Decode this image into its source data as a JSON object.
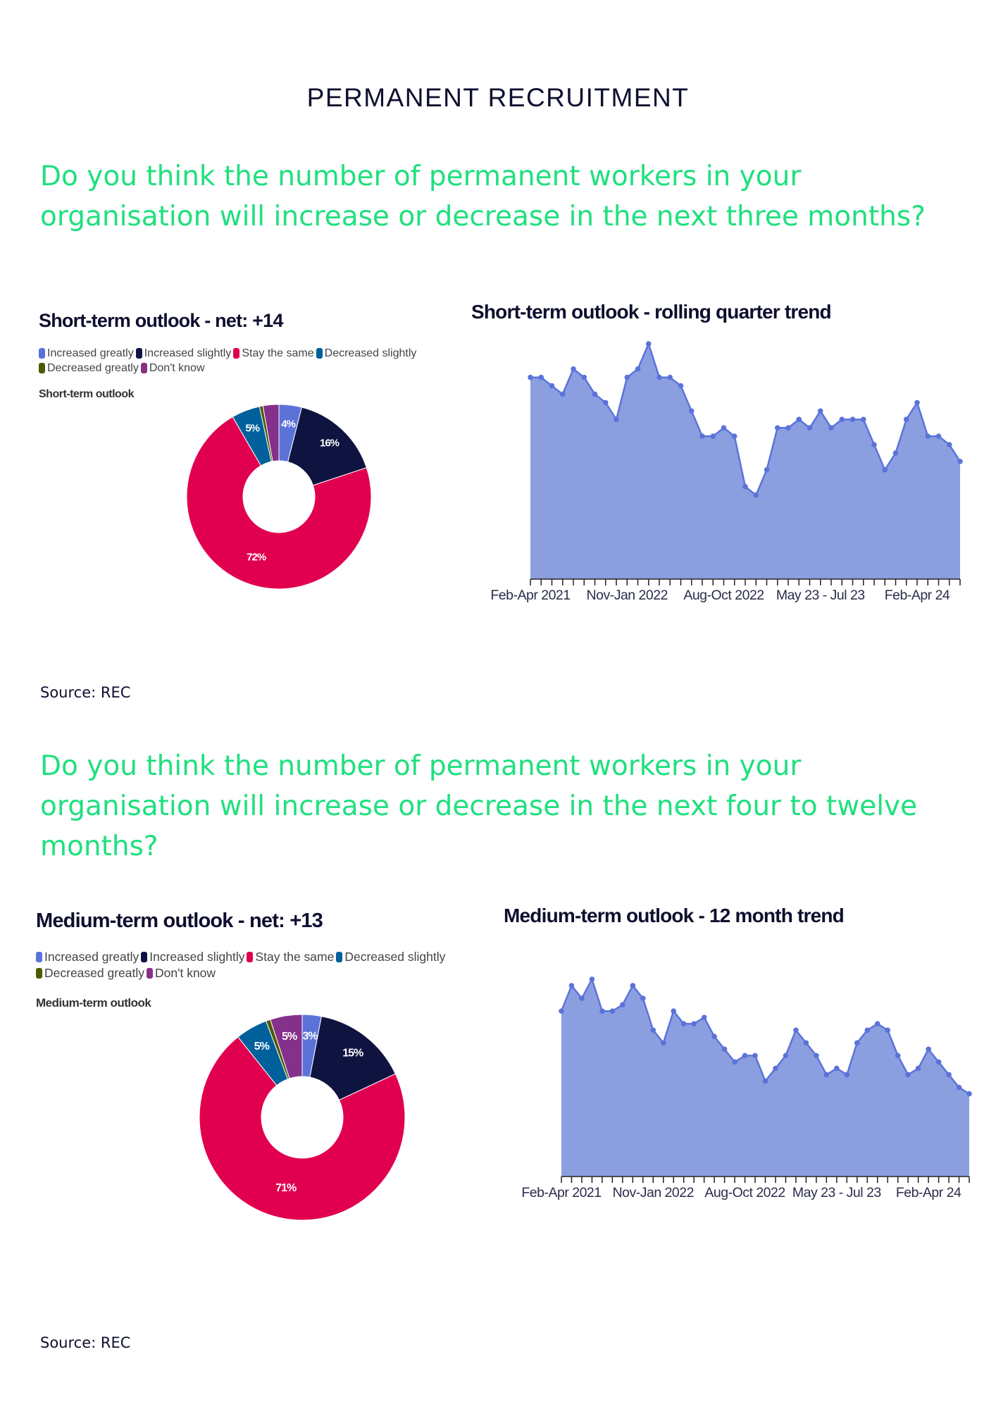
{
  "page_title": "PERMANENT RECRUITMENT",
  "sections": [
    {
      "question": "Do you think the number of permanent workers in your organisation will increase or decrease in the next three months?",
      "source": "Source: REC"
    },
    {
      "question": "Do you think the number of permanent workers in your organisation will increase or decrease in the next four to twelve months?",
      "source": "Source: REC"
    }
  ],
  "legend_items": [
    {
      "label": "Increased greatly",
      "color": "#5b73d9"
    },
    {
      "label": "Increased slightly",
      "color": "#0f1340"
    },
    {
      "label": "Stay the same",
      "color": "#e1004f"
    },
    {
      "label": "Decreased slightly",
      "color": "#00609c"
    },
    {
      "label": "Decreased greatly",
      "color": "#4f5a00"
    },
    {
      "label": "Don't know",
      "color": "#85308a"
    }
  ],
  "chart_data": [
    {
      "type": "pie",
      "donut": true,
      "title": "Short-term outlook - net: +14",
      "subtitle": "Short-term outlook",
      "legend_placement": "top-left",
      "categories": [
        "Increased greatly",
        "Increased slightly",
        "Stay the same",
        "Decreased slightly",
        "Decreased greatly",
        "Don't know"
      ],
      "values": [
        4,
        16,
        72,
        5,
        0.6,
        2.8
      ],
      "data_labels": [
        "4%",
        "16%",
        "72%",
        "5%",
        "",
        ""
      ],
      "colors": [
        "#5b73d9",
        "#0f1340",
        "#e1004f",
        "#00609c",
        "#4f5a00",
        "#85308a"
      ]
    },
    {
      "type": "area",
      "title": "Short-term outlook - rolling quarter trend",
      "xlabel": "",
      "ylabel": "",
      "x_tick_labels": [
        "Feb-Apr 2021",
        "Nov-Jan 2022",
        "Aug-Oct 2022",
        "May 23 - Jul 23",
        "Feb-Apr 24"
      ],
      "x_tick_label_every": 9,
      "values": [
        24,
        24,
        23,
        22,
        25,
        24,
        22,
        21,
        19,
        24,
        25,
        28,
        24,
        24,
        23,
        20,
        17,
        17,
        18,
        17,
        11,
        10,
        13,
        18,
        18,
        19,
        18,
        20,
        18,
        19,
        19,
        19,
        16,
        13,
        15,
        19,
        21,
        17,
        17,
        16,
        14
      ],
      "ylim": [
        0,
        28
      ],
      "grid": false,
      "fill_color": "#8b9fe0",
      "line_color": "#5b73d9"
    },
    {
      "type": "pie",
      "donut": true,
      "title": "Medium-term outlook - net: +13",
      "subtitle": "Medium-term outlook",
      "legend_placement": "top-left",
      "categories": [
        "Increased greatly",
        "Increased slightly",
        "Stay the same",
        "Decreased slightly",
        "Decreased greatly",
        "Don't know"
      ],
      "values": [
        3,
        15,
        71,
        5,
        0.7,
        5
      ],
      "data_labels": [
        "3%",
        "15%",
        "71%",
        "5%",
        "",
        "5%"
      ],
      "colors": [
        "#5b73d9",
        "#0f1340",
        "#e1004f",
        "#00609c",
        "#4f5a00",
        "#85308a"
      ]
    },
    {
      "type": "area",
      "title": "Medium-term outlook - 12 month trend",
      "xlabel": "",
      "ylabel": "",
      "x_tick_labels": [
        "Feb-Apr 2021",
        "Nov-Jan 2022",
        "Aug-Oct 2022",
        "May 23 - Jul 23",
        "Feb-Apr 24"
      ],
      "x_tick_label_every": 9,
      "values": [
        26,
        30,
        28,
        31,
        26,
        26,
        27,
        30,
        28,
        23,
        21,
        26,
        24,
        24,
        25,
        22,
        20,
        18,
        19,
        19,
        15,
        17,
        19,
        23,
        21,
        19,
        16,
        17,
        16,
        21,
        23,
        24,
        23,
        19,
        16,
        17,
        20,
        18,
        16,
        14,
        13
      ],
      "ylim": [
        0,
        31
      ],
      "grid": false,
      "fill_color": "#8b9fe0",
      "line_color": "#5b73d9"
    }
  ]
}
